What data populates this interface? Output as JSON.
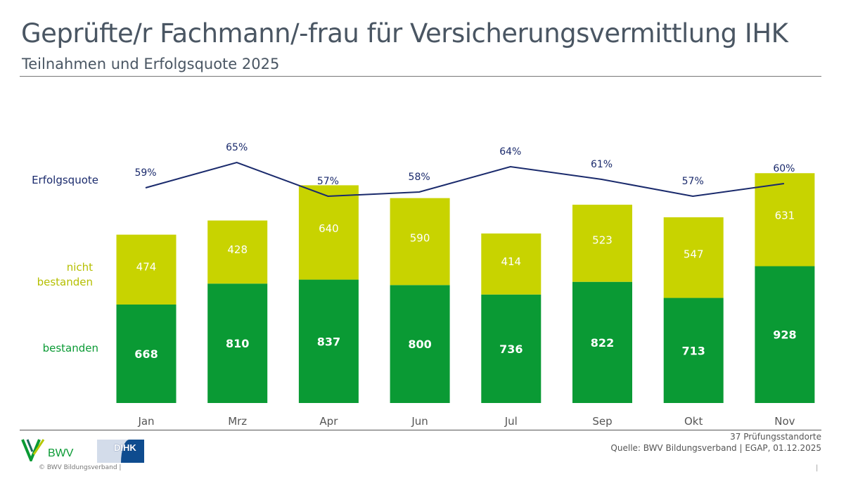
{
  "header": {
    "title": "Geprüfte/r Fachmann/-frau für Versicherungsvermittlung IHK",
    "subtitle": "Teilnahmen und Erfolgsquote 2025"
  },
  "chart_data": {
    "type": "bar",
    "stacked": true,
    "categories": [
      "Jan",
      "Mrz",
      "Apr",
      "Jun",
      "Jul",
      "Sep",
      "Okt",
      "Nov"
    ],
    "series": [
      {
        "name": "bestanden",
        "values": [
          668,
          810,
          837,
          800,
          736,
          822,
          713,
          928
        ],
        "color": "#0a9a34"
      },
      {
        "name": "nicht bestanden",
        "values": [
          474,
          428,
          640,
          590,
          414,
          523,
          547,
          631
        ],
        "color": "#c8d300"
      }
    ],
    "line_series": {
      "name": "Erfolgsquote",
      "type": "line",
      "unit": "%",
      "values": [
        59,
        65,
        57,
        58,
        64,
        61,
        57,
        60
      ],
      "color": "#1a2a6c"
    },
    "grid": false,
    "legend_placement": "left"
  },
  "footer": {
    "note": "37 Prüfungsstandorte",
    "source": "Quelle: BWV Bildungsverband | EGAP, 01.12.2025",
    "copyright": "© BWV Bildungsverband |",
    "pipe": "|",
    "logo_bwv": "BWV",
    "logo_dihk": "DIHK"
  }
}
